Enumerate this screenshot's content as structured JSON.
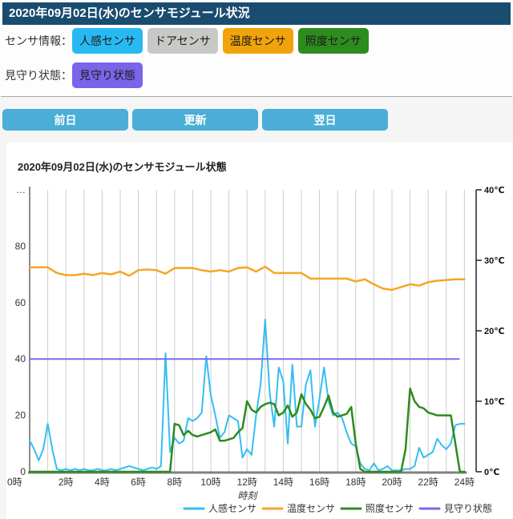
{
  "header": {
    "title": "2020年09月02日(水)のセンサモジュール状況"
  },
  "sensor_info": {
    "label": "センサ情報：",
    "buttons": [
      {
        "id": "motion",
        "label": "人感センサ",
        "color": "#29b9f2"
      },
      {
        "id": "door",
        "label": "ドアセンサ",
        "color": "#c8c8c6"
      },
      {
        "id": "temperature",
        "label": "温度センサ",
        "color": "#f0a30a"
      },
      {
        "id": "illuminance",
        "label": "照度センサ",
        "color": "#2e8b1e"
      }
    ]
  },
  "watch_status": {
    "label": "見守り状態：",
    "button": {
      "id": "watch",
      "label": "見守り状態",
      "color": "#7b64e8"
    }
  },
  "nav": {
    "prev_label": "前日",
    "refresh_label": "更新",
    "next_label": "翌日"
  },
  "chart_data": {
    "type": "line",
    "title": "2020年09月02日(水)のセンサモジュール状態",
    "xlabel": "時刻",
    "x_range_hours": [
      0,
      24
    ],
    "x_tick_labels": [
      "0時",
      "2時",
      "4時",
      "6時",
      "8時",
      "10時",
      "12時",
      "14時",
      "16時",
      "18時",
      "20時",
      "22時",
      "24時"
    ],
    "grid": "vertical-hourly",
    "left_axis": {
      "range": [
        0,
        100
      ],
      "ticks": [
        {
          "v": 100,
          "label": "…"
        },
        {
          "v": 80,
          "label": "80"
        },
        {
          "v": 60,
          "label": "60"
        },
        {
          "v": 40,
          "label": "40"
        },
        {
          "v": 20,
          "label": "20"
        },
        {
          "v": 0,
          "label": "0"
        }
      ]
    },
    "right_axis": {
      "unit": "℃",
      "range": [
        0,
        40
      ],
      "ticks": [
        {
          "v": 40,
          "label": "40℃"
        },
        {
          "v": 30,
          "label": "30℃"
        },
        {
          "v": 20,
          "label": "20℃"
        },
        {
          "v": 10,
          "label": "10℃"
        },
        {
          "v": 0,
          "label": "0℃"
        }
      ]
    },
    "legend_position": "bottom-center",
    "series": [
      {
        "name": "人感センサ",
        "color": "#35bdf2",
        "width": 2,
        "axis": "left",
        "step_minutes": 15,
        "values": [
          11,
          8,
          4,
          8,
          17,
          8,
          1,
          0.5,
          1,
          0.5,
          1,
          0.5,
          1,
          0.5,
          0.5,
          1,
          0.5,
          0.5,
          1,
          0.5,
          1,
          1.5,
          2,
          1.5,
          1,
          0.5,
          1,
          1.5,
          1,
          2,
          42,
          7,
          12,
          10,
          11,
          19,
          18,
          19,
          21,
          41,
          27,
          20,
          12,
          14,
          20,
          19,
          18,
          5,
          8,
          6,
          20,
          31,
          54,
          28,
          16,
          37,
          32,
          10,
          38,
          16,
          16,
          31,
          36,
          16,
          26,
          37,
          25,
          20,
          21,
          19,
          14,
          10,
          9,
          3,
          1,
          0.5,
          3,
          0.5,
          1,
          2,
          0.5,
          0.5,
          0.5,
          1,
          1,
          2,
          8.5,
          5,
          6,
          7,
          11.7,
          9.4,
          8,
          10,
          16.5,
          17,
          17
        ]
      },
      {
        "name": "温度センサ",
        "color": "#f5a623",
        "width": 2.5,
        "axis": "right",
        "step_minutes": 30,
        "values": [
          29,
          29,
          29,
          28.2,
          27.9,
          27.9,
          28.1,
          27.9,
          28.2,
          28,
          28.4,
          27.8,
          28.6,
          28.7,
          28.6,
          28.1,
          28.9,
          28.9,
          28.9,
          28.6,
          28.4,
          28.6,
          28.4,
          28.9,
          29,
          28.4,
          29.1,
          28.2,
          28.2,
          28.2,
          28.2,
          27.4,
          27.4,
          27.4,
          27.4,
          27.4,
          27,
          27.3,
          26.6,
          26,
          25.8,
          26.2,
          26.6,
          26.4,
          26.9,
          27.1,
          27.2,
          27.3,
          27.3
        ]
      },
      {
        "name": "照度センサ",
        "color": "#2e8b1e",
        "width": 2.5,
        "axis": "left",
        "step_minutes": 15,
        "values": [
          0,
          0,
          0,
          0,
          0,
          0,
          0,
          0,
          0,
          0,
          0,
          0,
          0,
          0,
          0,
          0,
          0,
          0,
          0,
          0,
          0,
          0,
          0,
          0,
          0,
          0,
          0,
          0,
          0,
          0,
          0,
          0,
          17,
          16.5,
          13,
          14.5,
          13,
          12.5,
          13,
          13.5,
          14,
          15,
          11,
          11,
          11.5,
          12,
          14,
          15.5,
          25,
          22,
          21,
          23,
          24,
          24.5,
          24,
          20,
          21,
          23.5,
          19.5,
          21,
          27.5,
          24,
          22,
          19,
          19.5,
          23,
          27,
          21,
          19.5,
          20,
          20.5,
          23,
          10,
          1,
          0,
          0,
          0,
          0,
          0,
          0,
          0,
          0,
          0,
          8,
          29.5,
          25,
          23,
          22.5,
          21,
          20.5,
          20,
          20,
          20,
          20,
          10,
          0,
          0
        ]
      },
      {
        "name": "見守り状態",
        "color": "#7b68ee",
        "width": 2,
        "axis": "left",
        "x_hours": [
          0,
          23.7
        ],
        "values": [
          40,
          40
        ]
      }
    ],
    "legend": [
      {
        "label": "人感センサ",
        "color": "#35bdf2"
      },
      {
        "label": "温度センサ",
        "color": "#f5a623"
      },
      {
        "label": "照度センサ",
        "color": "#2e8b1e"
      },
      {
        "label": "見守り状態",
        "color": "#7b68ee"
      }
    ]
  }
}
